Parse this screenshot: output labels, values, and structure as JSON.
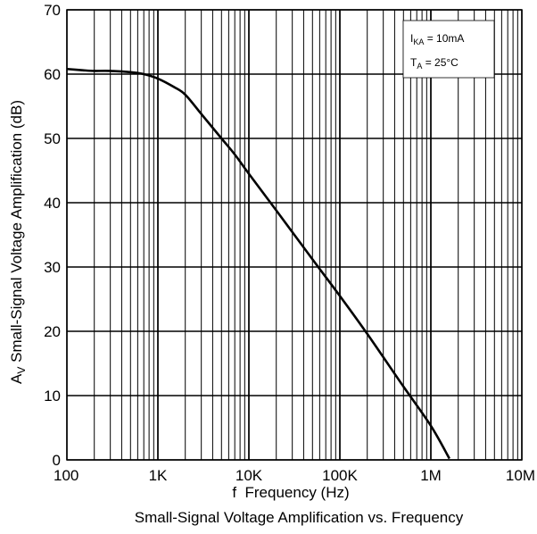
{
  "chart_data": {
    "type": "line",
    "title": "Small-Signal Voltage Amplification vs. Frequency",
    "xlabel": "f  Frequency (Hz)",
    "ylabel_main": "A",
    "ylabel_sub": "V",
    "ylabel_rest": " Small-Signal Voltage Amplification (dB)",
    "xscale": "log",
    "xlim": [
      100,
      10000000
    ],
    "ylim": [
      0,
      70
    ],
    "grid": true,
    "x_ticks": [
      {
        "value": 100,
        "label": "100"
      },
      {
        "value": 1000,
        "label": "1K"
      },
      {
        "value": 10000,
        "label": "10K"
      },
      {
        "value": 100000,
        "label": "100K"
      },
      {
        "value": 1000000,
        "label": "1M"
      },
      {
        "value": 10000000,
        "label": "10M"
      }
    ],
    "y_ticks": [
      {
        "value": 0,
        "label": "0"
      },
      {
        "value": 10,
        "label": "10"
      },
      {
        "value": 20,
        "label": "20"
      },
      {
        "value": 30,
        "label": "30"
      },
      {
        "value": 40,
        "label": "40"
      },
      {
        "value": 50,
        "label": "50"
      },
      {
        "value": 60,
        "label": "60"
      },
      {
        "value": 70,
        "label": "70"
      }
    ],
    "annotation": {
      "line1_main": "I",
      "line1_sub": "KA",
      "line1_rest": " = 10mA",
      "line2_main": "T",
      "line2_sub": "A",
      "line2_rest": " = 25°C"
    },
    "series": [
      {
        "x": [
          100,
          150,
          200,
          300,
          500,
          700,
          1000,
          1500,
          2000,
          3000,
          5000,
          7000,
          10000,
          20000,
          50000,
          100000,
          200000,
          500000,
          1000000,
          1600000
        ],
        "y": [
          60.8,
          60.6,
          60.5,
          60.5,
          60.3,
          60.0,
          59.3,
          58.0,
          56.8,
          53.8,
          50.0,
          47.5,
          44.5,
          38.8,
          31.2,
          25.5,
          19.6,
          11.4,
          5.3,
          0.2
        ]
      }
    ]
  }
}
